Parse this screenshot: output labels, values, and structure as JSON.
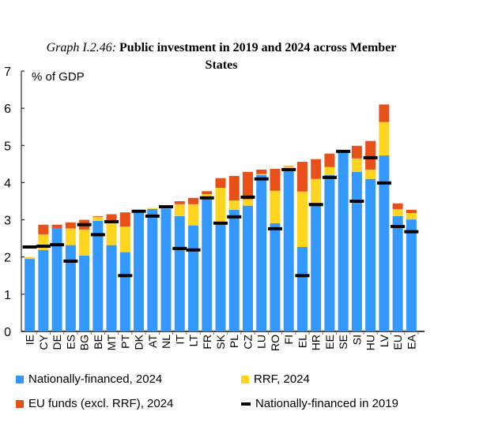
{
  "chart_data": {
    "type": "bar",
    "stacked": true,
    "title_prefix": "Graph I.2.46:",
    "title": "Public investment in 2019 and 2024 across Member States",
    "ylabel": "% of GDP",
    "ylim": [
      0,
      7
    ],
    "yticks": [
      0,
      1,
      2,
      3,
      4,
      5,
      6,
      7
    ],
    "grid": false,
    "legend_position": "bottom",
    "categories": [
      "IE",
      "CY",
      "DE",
      "ES",
      "BG",
      "BE",
      "MT",
      "PT",
      "DK",
      "AT",
      "NL",
      "IT",
      "LT",
      "FR",
      "SK",
      "PL",
      "CZ",
      "LU",
      "RO",
      "FI",
      "EL",
      "HR",
      "EE",
      "SE",
      "SI",
      "HU",
      "LV",
      "EU",
      "EA"
    ],
    "series": [
      {
        "name": "Nationally-financed, 2024",
        "color": "#3399ff",
        "kind": "bar",
        "values": [
          1.95,
          2.19,
          2.78,
          2.32,
          2.04,
          2.97,
          2.32,
          2.13,
          3.19,
          3.29,
          3.3,
          3.1,
          2.85,
          3.55,
          2.87,
          3.27,
          3.38,
          4.2,
          2.91,
          4.31,
          2.27,
          3.46,
          4.2,
          4.8,
          4.29,
          4.1,
          4.73,
          3.1,
          3.01
        ]
      },
      {
        "name": "RRF, 2024",
        "color": "#ffd520",
        "kind": "bar",
        "values": [
          0.05,
          0.42,
          0.0,
          0.45,
          0.7,
          0.11,
          0.67,
          0.69,
          0.0,
          0.03,
          0.0,
          0.32,
          0.57,
          0.14,
          0.99,
          0.25,
          0.17,
          0.03,
          0.87,
          0.13,
          1.49,
          0.64,
          0.22,
          0.0,
          0.36,
          0.25,
          0.9,
          0.19,
          0.17
        ]
      },
      {
        "name": "EU funds (excl. RRF), 2024",
        "color": "#e8501a",
        "kind": "bar",
        "values": [
          0.0,
          0.26,
          0.09,
          0.16,
          0.26,
          0.02,
          0.16,
          0.38,
          0.0,
          0.0,
          0.0,
          0.08,
          0.17,
          0.08,
          0.26,
          0.66,
          0.74,
          0.12,
          0.59,
          0.01,
          0.8,
          0.53,
          0.36,
          0.0,
          0.34,
          0.77,
          0.47,
          0.15,
          0.09
        ]
      },
      {
        "name": "Nationally-financed in 2019",
        "color": "#000000",
        "kind": "marker",
        "values": [
          2.27,
          2.29,
          2.33,
          1.89,
          2.87,
          2.6,
          2.95,
          1.5,
          3.23,
          3.1,
          3.35,
          2.23,
          2.19,
          3.59,
          2.91,
          3.08,
          3.61,
          4.1,
          2.76,
          4.35,
          1.5,
          3.41,
          4.14,
          4.84,
          3.5,
          4.67,
          3.99,
          2.82,
          2.68
        ]
      }
    ]
  }
}
